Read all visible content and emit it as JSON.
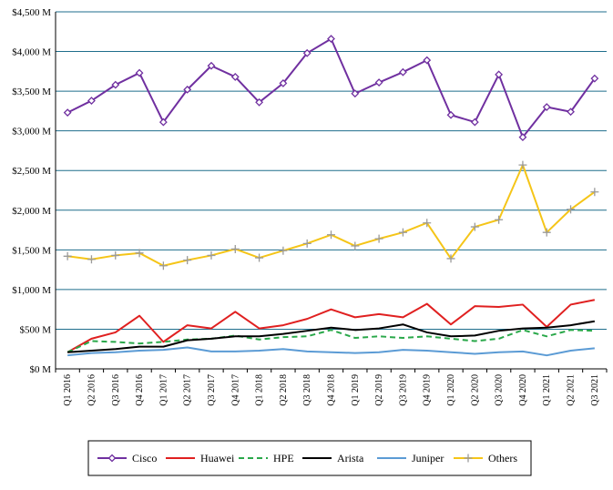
{
  "chart_data": {
    "type": "line",
    "title": "",
    "xlabel": "",
    "ylabel": "",
    "ylim": [
      0,
      4500
    ],
    "y_ticks": [
      0,
      500,
      1000,
      1500,
      2000,
      2500,
      3000,
      3500,
      4000,
      4500
    ],
    "y_tick_labels": [
      "$0 M",
      "$500 M",
      "$1,000 M",
      "$1,500 M",
      "$2,000 M",
      "$2,500 M",
      "$3,000 M",
      "$3,500 M",
      "$4,000 M",
      "$4,500 M"
    ],
    "grid": "horizontal",
    "legend_position": "bottom",
    "categories": [
      "Q1 2016",
      "Q2 2016",
      "Q3 2016",
      "Q4 2016",
      "Q1 2017",
      "Q2 2017",
      "Q3 2017",
      "Q4 2017",
      "Q1 2018",
      "Q2 2018",
      "Q3 2018",
      "Q4 2018",
      "Q1 2019",
      "Q2 2019",
      "Q3 2019",
      "Q4 2019",
      "Q1 2020",
      "Q2 2020",
      "Q3 2020",
      "Q4 2020",
      "Q1 2021",
      "Q2 2021",
      "Q3 2021"
    ],
    "series": [
      {
        "name": "Cisco",
        "color": "#7030a0",
        "dash": "solid",
        "marker": "diamond",
        "values": [
          3230,
          3380,
          3580,
          3730,
          3110,
          3520,
          3820,
          3680,
          3360,
          3600,
          3980,
          4160,
          3470,
          3610,
          3740,
          3890,
          3200,
          3110,
          3710,
          2920,
          3300,
          3240,
          3660
        ]
      },
      {
        "name": "Huawei",
        "color": "#e02020",
        "dash": "solid",
        "marker": "none",
        "values": [
          210,
          380,
          460,
          670,
          340,
          550,
          510,
          720,
          510,
          550,
          630,
          750,
          650,
          690,
          650,
          820,
          560,
          790,
          780,
          810,
          530,
          810,
          870
        ]
      },
      {
        "name": "HPE",
        "color": "#2aa84a",
        "dash": "dashed",
        "marker": "none",
        "values": [
          210,
          350,
          340,
          320,
          340,
          370,
          380,
          420,
          370,
          400,
          410,
          490,
          390,
          410,
          390,
          410,
          380,
          350,
          380,
          490,
          410,
          490,
          480
        ]
      },
      {
        "name": "Arista",
        "color": "#000000",
        "dash": "solid",
        "marker": "none",
        "values": [
          210,
          230,
          250,
          280,
          280,
          360,
          380,
          410,
          410,
          440,
          480,
          520,
          490,
          510,
          560,
          460,
          410,
          420,
          480,
          510,
          520,
          550,
          600
        ]
      },
      {
        "name": "Juniper",
        "color": "#5b9bd5",
        "dash": "solid",
        "marker": "none",
        "values": [
          170,
          200,
          210,
          230,
          240,
          270,
          220,
          220,
          230,
          250,
          220,
          210,
          200,
          210,
          240,
          230,
          210,
          190,
          210,
          220,
          170,
          230,
          260
        ]
      },
      {
        "name": "Others",
        "color": "#f5c518",
        "dash": "solid",
        "marker": "plus",
        "values": [
          1420,
          1380,
          1430,
          1460,
          1300,
          1370,
          1430,
          1510,
          1400,
          1490,
          1580,
          1690,
          1550,
          1640,
          1720,
          1840,
          1390,
          1790,
          1880,
          2570,
          1720,
          2010,
          2230
        ]
      }
    ]
  }
}
